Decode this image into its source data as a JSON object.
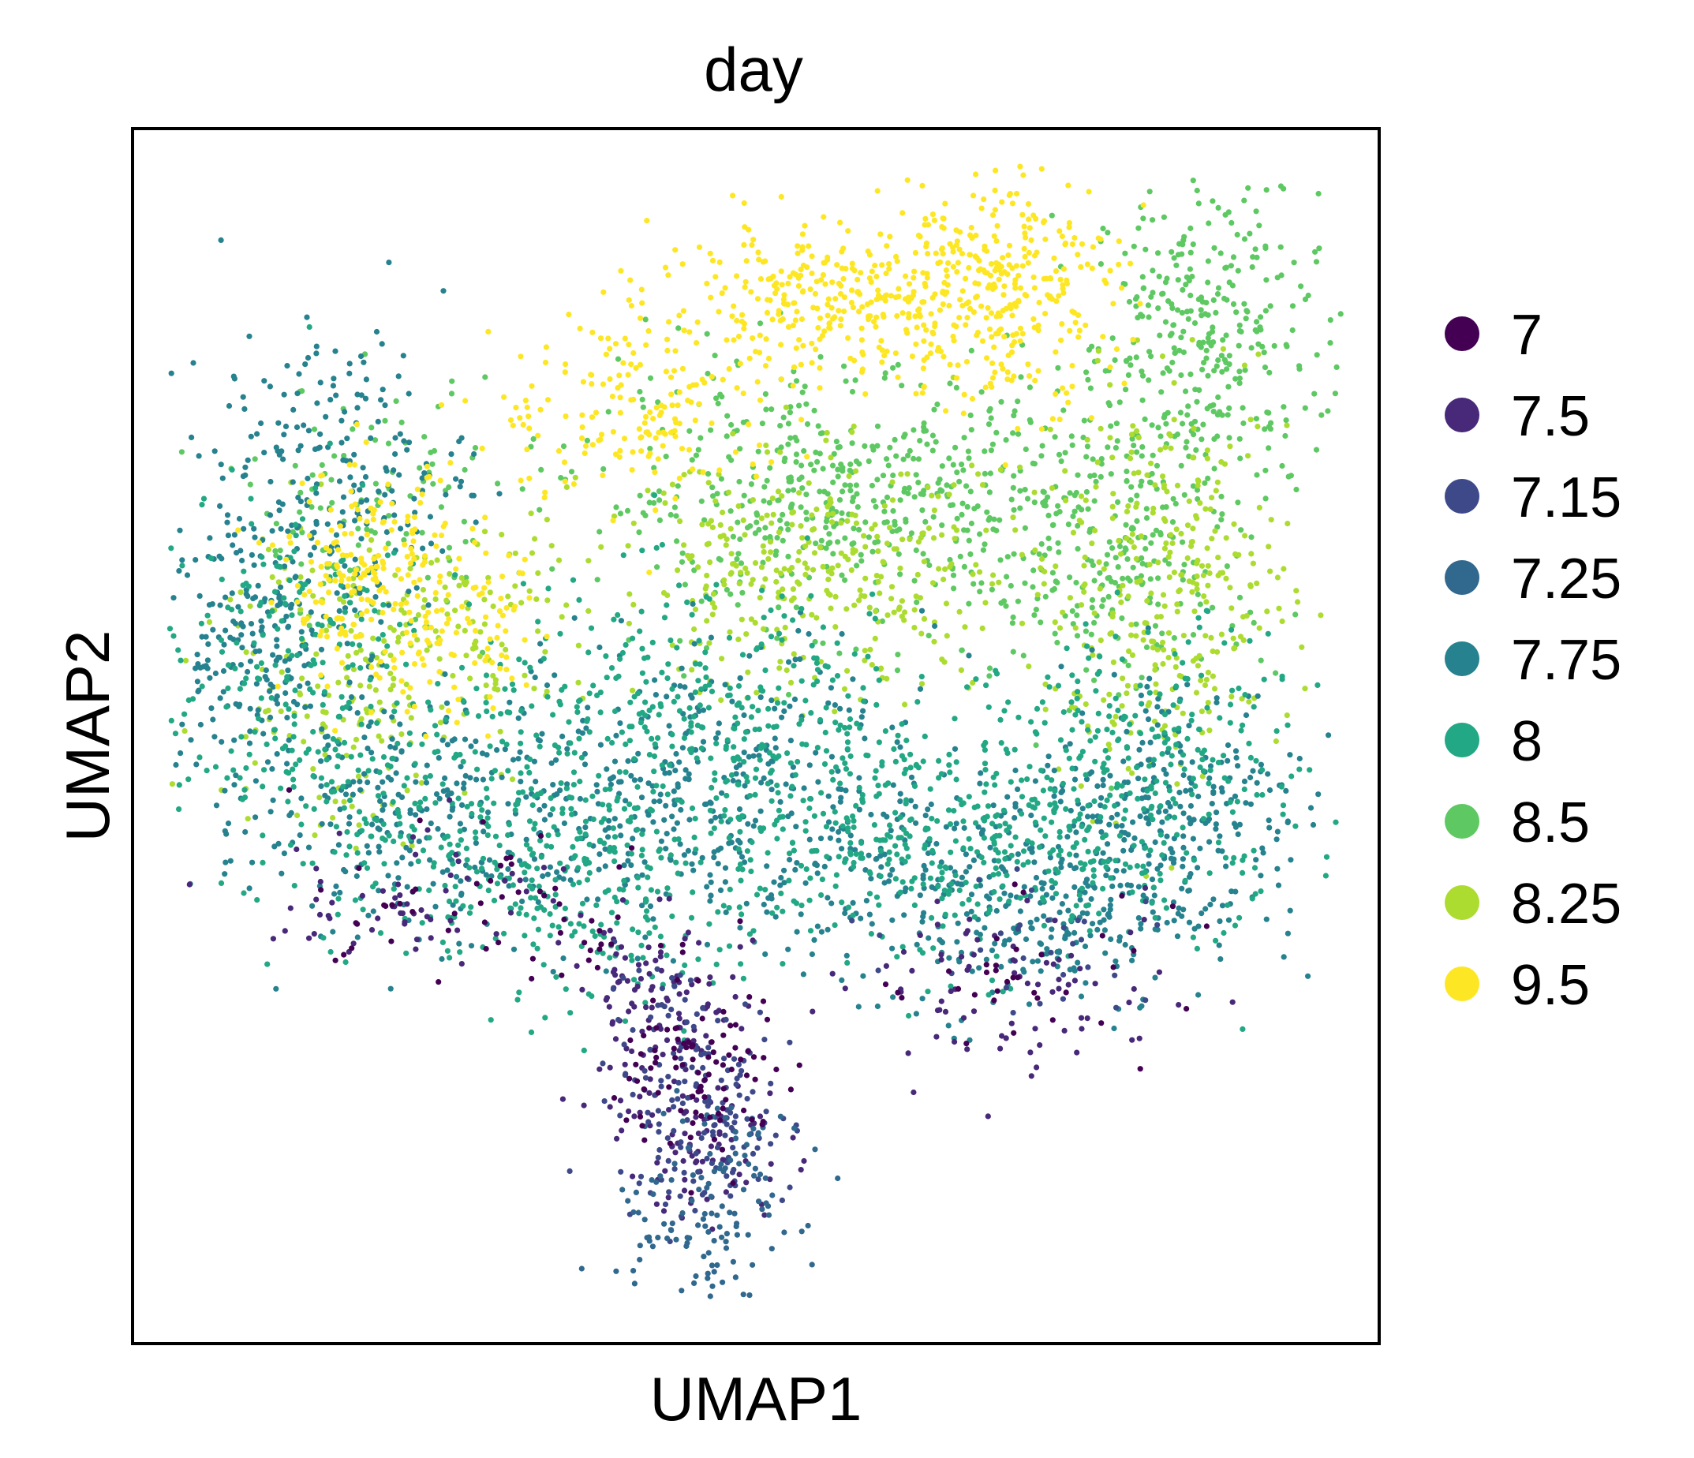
{
  "chart_data": {
    "type": "scatter",
    "title": "day",
    "xlabel": "UMAP1",
    "ylabel": "UMAP2",
    "xticks": false,
    "yticks": false,
    "grid": false,
    "legend_position": "right",
    "series": [
      {
        "name": "7",
        "color": "#440154",
        "clusters": [
          {
            "cx": 0.46,
            "cy": 0.22,
            "sx": 0.035,
            "sy": 0.035,
            "n": 90
          },
          {
            "cx": 0.36,
            "cy": 0.34,
            "sx": 0.05,
            "sy": 0.03,
            "n": 35
          },
          {
            "cx": 0.22,
            "cy": 0.36,
            "sx": 0.04,
            "sy": 0.03,
            "n": 25
          },
          {
            "cx": 0.72,
            "cy": 0.31,
            "sx": 0.06,
            "sy": 0.03,
            "n": 35
          }
        ]
      },
      {
        "name": "7.5",
        "color": "#482878",
        "clusters": [
          {
            "cx": 0.42,
            "cy": 0.27,
            "sx": 0.035,
            "sy": 0.04,
            "n": 120
          },
          {
            "cx": 0.46,
            "cy": 0.16,
            "sx": 0.035,
            "sy": 0.03,
            "n": 70
          },
          {
            "cx": 0.23,
            "cy": 0.37,
            "sx": 0.06,
            "sy": 0.03,
            "n": 60
          },
          {
            "cx": 0.71,
            "cy": 0.29,
            "sx": 0.07,
            "sy": 0.035,
            "n": 80
          }
        ]
      },
      {
        "name": "7.15",
        "color": "#3e4989",
        "clusters": [
          {
            "cx": 0.46,
            "cy": 0.18,
            "sx": 0.035,
            "sy": 0.04,
            "n": 140
          },
          {
            "cx": 0.42,
            "cy": 0.26,
            "sx": 0.03,
            "sy": 0.03,
            "n": 40
          },
          {
            "cx": 0.74,
            "cy": 0.33,
            "sx": 0.06,
            "sy": 0.035,
            "n": 30
          }
        ]
      },
      {
        "name": "7.25",
        "color": "#31688e",
        "clusters": [
          {
            "cx": 0.45,
            "cy": 0.1,
            "sx": 0.035,
            "sy": 0.03,
            "n": 90
          },
          {
            "cx": 0.47,
            "cy": 0.16,
            "sx": 0.03,
            "sy": 0.03,
            "n": 40
          }
        ]
      },
      {
        "name": "7.75",
        "color": "#26828e",
        "clusters": [
          {
            "cx": 0.11,
            "cy": 0.59,
            "sx": 0.05,
            "sy": 0.07,
            "n": 300
          },
          {
            "cx": 0.22,
            "cy": 0.43,
            "sx": 0.08,
            "sy": 0.05,
            "n": 250
          },
          {
            "cx": 0.46,
            "cy": 0.46,
            "sx": 0.09,
            "sy": 0.06,
            "n": 400
          },
          {
            "cx": 0.7,
            "cy": 0.37,
            "sx": 0.08,
            "sy": 0.05,
            "n": 380
          },
          {
            "cx": 0.84,
            "cy": 0.44,
            "sx": 0.05,
            "sy": 0.06,
            "n": 250
          },
          {
            "cx": 0.17,
            "cy": 0.73,
            "sx": 0.05,
            "sy": 0.05,
            "n": 150
          }
        ]
      },
      {
        "name": "8",
        "color": "#22a884",
        "clusters": [
          {
            "cx": 0.12,
            "cy": 0.55,
            "sx": 0.06,
            "sy": 0.08,
            "n": 250
          },
          {
            "cx": 0.28,
            "cy": 0.42,
            "sx": 0.08,
            "sy": 0.05,
            "n": 260
          },
          {
            "cx": 0.46,
            "cy": 0.5,
            "sx": 0.1,
            "sy": 0.06,
            "n": 420
          },
          {
            "cx": 0.66,
            "cy": 0.41,
            "sx": 0.09,
            "sy": 0.05,
            "n": 380
          },
          {
            "cx": 0.82,
            "cy": 0.47,
            "sx": 0.06,
            "sy": 0.06,
            "n": 250
          },
          {
            "cx": 0.4,
            "cy": 0.35,
            "sx": 0.06,
            "sy": 0.04,
            "n": 120
          }
        ]
      },
      {
        "name": "8.5",
        "color": "#5ec962",
        "clusters": [
          {
            "cx": 0.86,
            "cy": 0.83,
            "sx": 0.045,
            "sy": 0.06,
            "n": 320
          },
          {
            "cx": 0.56,
            "cy": 0.7,
            "sx": 0.1,
            "sy": 0.05,
            "n": 480
          },
          {
            "cx": 0.78,
            "cy": 0.66,
            "sx": 0.07,
            "sy": 0.06,
            "n": 300
          },
          {
            "cx": 0.19,
            "cy": 0.69,
            "sx": 0.05,
            "sy": 0.05,
            "n": 110
          }
        ]
      },
      {
        "name": "8.25",
        "color": "#addc30",
        "clusters": [
          {
            "cx": 0.55,
            "cy": 0.63,
            "sx": 0.09,
            "sy": 0.05,
            "n": 350
          },
          {
            "cx": 0.83,
            "cy": 0.62,
            "sx": 0.05,
            "sy": 0.08,
            "n": 320
          },
          {
            "cx": 0.16,
            "cy": 0.55,
            "sx": 0.05,
            "sy": 0.07,
            "n": 170
          },
          {
            "cx": 0.28,
            "cy": 0.59,
            "sx": 0.04,
            "sy": 0.05,
            "n": 90
          }
        ]
      },
      {
        "name": "9.5",
        "color": "#fde725",
        "clusters": [
          {
            "cx": 0.69,
            "cy": 0.87,
            "sx": 0.05,
            "sy": 0.05,
            "n": 320
          },
          {
            "cx": 0.56,
            "cy": 0.86,
            "sx": 0.07,
            "sy": 0.03,
            "n": 280
          },
          {
            "cx": 0.41,
            "cy": 0.77,
            "sx": 0.06,
            "sy": 0.04,
            "n": 170
          },
          {
            "cx": 0.19,
            "cy": 0.63,
            "sx": 0.035,
            "sy": 0.045,
            "n": 200
          },
          {
            "cx": 0.27,
            "cy": 0.58,
            "sx": 0.04,
            "sy": 0.04,
            "n": 80
          }
        ]
      }
    ]
  }
}
